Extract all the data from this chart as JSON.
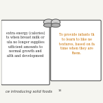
{
  "title": "ce introducing solid foods",
  "title_superscript": "14",
  "bg_color": "#f5f5f0",
  "box1_text": "extra energy (calories)\nts when breast milk or\nula no longer supplies\nufficient amounts to\nnormal growth and\nalth and development",
  "box2_text": "To provide infants th\nto learn to like ne\ntextures, based on fa\ntime when they are\nthem.",
  "box_bg": "#ffffff",
  "box_border": "#555555",
  "text_color1": "#333333",
  "text_color2": "#c87000",
  "scroll_color": "#b0b0b0",
  "scroll_top_color": "#d0d0d0"
}
